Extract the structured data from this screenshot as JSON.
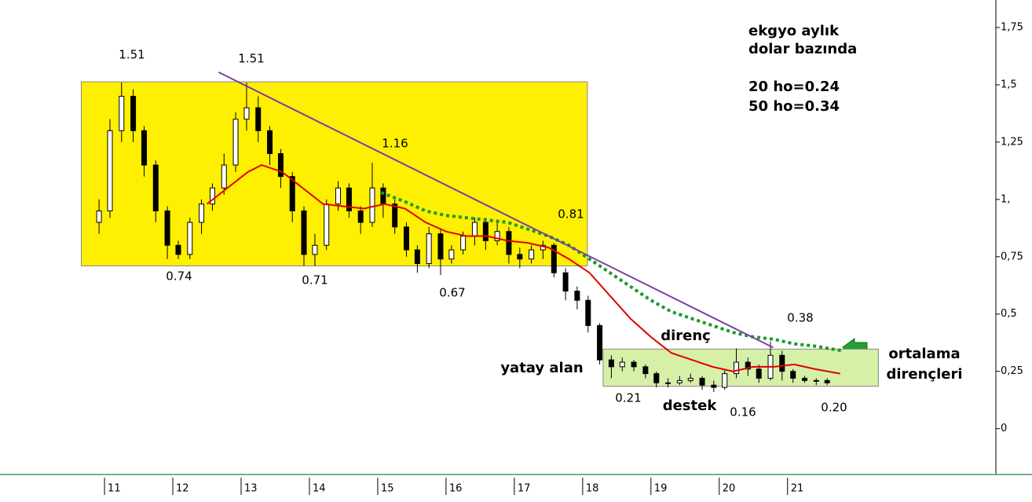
{
  "chart_data": {
    "type": "candlestick",
    "title": "ekgyo aylık",
    "subtitle": "dolar bazında",
    "notes": [
      "20 ho=0.24",
      "50 ho=0.34"
    ],
    "x": [
      10.92,
      11.08,
      11.25,
      11.42,
      11.58,
      11.75,
      11.92,
      12.08,
      12.25,
      12.42,
      12.58,
      12.75,
      12.92,
      13.08,
      13.25,
      13.42,
      13.58,
      13.75,
      13.92,
      14.08,
      14.25,
      14.42,
      14.58,
      14.75,
      14.92,
      15.08,
      15.25,
      15.42,
      15.58,
      15.75,
      15.92,
      16.08,
      16.25,
      16.42,
      16.58,
      16.75,
      16.92,
      17.08,
      17.25,
      17.42,
      17.58,
      17.75,
      17.92,
      18.08,
      18.25,
      18.42,
      18.58,
      18.75,
      18.92,
      19.08,
      19.25,
      19.42,
      19.58,
      19.75,
      19.92,
      20.08,
      20.25,
      20.42,
      20.58,
      20.75,
      20.92,
      21.08,
      21.25,
      21.42,
      21.58
    ],
    "open": [
      0.9,
      0.95,
      1.3,
      1.45,
      1.3,
      1.15,
      0.95,
      0.8,
      0.76,
      0.9,
      0.98,
      1.05,
      1.15,
      1.35,
      1.4,
      1.3,
      1.2,
      1.1,
      0.95,
      0.76,
      0.8,
      0.98,
      1.05,
      0.95,
      0.9,
      1.05,
      0.98,
      0.88,
      0.78,
      0.72,
      0.85,
      0.74,
      0.78,
      0.84,
      0.9,
      0.82,
      0.86,
      0.76,
      0.74,
      0.78,
      0.8,
      0.68,
      0.6,
      0.56,
      0.45,
      0.3,
      0.27,
      0.29,
      0.27,
      0.24,
      0.2,
      0.2,
      0.21,
      0.22,
      0.19,
      0.18,
      0.24,
      0.29,
      0.26,
      0.22,
      0.32,
      0.25,
      0.22,
      0.21,
      0.21
    ],
    "high": [
      1.0,
      1.35,
      1.51,
      1.48,
      1.32,
      1.17,
      0.97,
      0.82,
      0.92,
      1.0,
      1.07,
      1.2,
      1.38,
      1.51,
      1.45,
      1.32,
      1.22,
      1.12,
      0.97,
      0.85,
      1.0,
      1.08,
      1.07,
      0.97,
      1.16,
      1.07,
      1.0,
      0.9,
      0.8,
      0.88,
      0.87,
      0.8,
      0.86,
      0.92,
      0.92,
      0.9,
      0.88,
      0.79,
      0.8,
      0.82,
      0.81,
      0.7,
      0.62,
      0.58,
      0.46,
      0.32,
      0.31,
      0.3,
      0.28,
      0.25,
      0.22,
      0.23,
      0.24,
      0.23,
      0.21,
      0.26,
      0.35,
      0.31,
      0.28,
      0.38,
      0.34,
      0.26,
      0.23,
      0.22,
      0.22
    ],
    "low": [
      0.85,
      0.92,
      1.25,
      1.25,
      1.1,
      0.9,
      0.74,
      0.74,
      0.74,
      0.85,
      0.95,
      1.02,
      1.12,
      1.3,
      1.25,
      1.15,
      1.05,
      0.9,
      0.71,
      0.71,
      0.78,
      0.95,
      0.92,
      0.85,
      0.88,
      0.92,
      0.85,
      0.75,
      0.68,
      0.7,
      0.67,
      0.72,
      0.76,
      0.8,
      0.78,
      0.8,
      0.72,
      0.7,
      0.72,
      0.74,
      0.66,
      0.56,
      0.52,
      0.42,
      0.28,
      0.22,
      0.25,
      0.25,
      0.22,
      0.18,
      0.18,
      0.19,
      0.2,
      0.17,
      0.16,
      0.17,
      0.22,
      0.23,
      0.2,
      0.21,
      0.21,
      0.2,
      0.2,
      0.19,
      0.19
    ],
    "close": [
      0.95,
      1.3,
      1.45,
      1.3,
      1.15,
      0.95,
      0.8,
      0.76,
      0.9,
      0.98,
      1.05,
      1.15,
      1.35,
      1.4,
      1.3,
      1.2,
      1.1,
      0.95,
      0.76,
      0.8,
      0.98,
      1.05,
      0.95,
      0.9,
      1.05,
      0.98,
      0.88,
      0.78,
      0.72,
      0.85,
      0.74,
      0.78,
      0.84,
      0.9,
      0.82,
      0.86,
      0.76,
      0.74,
      0.78,
      0.8,
      0.68,
      0.6,
      0.56,
      0.45,
      0.3,
      0.27,
      0.29,
      0.27,
      0.24,
      0.2,
      0.2,
      0.21,
      0.22,
      0.19,
      0.18,
      0.24,
      0.29,
      0.26,
      0.22,
      0.32,
      0.25,
      0.22,
      0.21,
      0.21,
      0.2
    ],
    "lines": [
      {
        "color": "#e00000",
        "style": "solid",
        "x": [
          12.5,
          12.8,
          13.1,
          13.3,
          13.6,
          13.9,
          14.2,
          14.5,
          14.8,
          15.1,
          15.4,
          15.7,
          16.0,
          16.3,
          16.6,
          16.9,
          17.2,
          17.5,
          17.8,
          18.1,
          18.4,
          18.7,
          19.0,
          19.3,
          19.6,
          19.9,
          20.2,
          20.5,
          20.8,
          21.1,
          21.4,
          21.77
        ],
        "values": [
          0.98,
          1.05,
          1.12,
          1.15,
          1.12,
          1.05,
          0.98,
          0.97,
          0.96,
          0.98,
          0.96,
          0.9,
          0.86,
          0.84,
          0.84,
          0.82,
          0.81,
          0.79,
          0.74,
          0.68,
          0.58,
          0.48,
          0.4,
          0.33,
          0.3,
          0.27,
          0.25,
          0.27,
          0.27,
          0.28,
          0.26,
          0.24
        ]
      },
      {
        "color": "#1a9a2a",
        "style": "dotted",
        "x": [
          15.05,
          15.4,
          15.7,
          16.0,
          16.3,
          16.6,
          16.9,
          17.2,
          17.5,
          17.8,
          18.1,
          18.4,
          18.7,
          19.0,
          19.3,
          19.6,
          19.9,
          20.2,
          20.5,
          20.8,
          21.1,
          21.4,
          21.8
        ],
        "values": [
          1.03,
          0.99,
          0.95,
          0.93,
          0.92,
          0.91,
          0.9,
          0.87,
          0.84,
          0.8,
          0.74,
          0.68,
          0.62,
          0.56,
          0.51,
          0.48,
          0.45,
          0.42,
          0.4,
          0.39,
          0.37,
          0.36,
          0.34
        ]
      },
      {
        "color": "#7b3fa0",
        "style": "solid",
        "x": [
          12.67,
          20.79
        ],
        "values": [
          1.555,
          0.354
        ]
      }
    ],
    "zones": [
      {
        "color": "#ffef00",
        "x": [
          10.66,
          18.07
        ],
        "y": [
          0.71,
          1.513
        ]
      },
      {
        "color": "#d6f0a8",
        "x": [
          18.3,
          22.33
        ],
        "y": [
          0.185,
          0.347
        ]
      }
    ],
    "annotations": [
      "1.51",
      "1.51",
      "1.16",
      "0.81",
      "0.74",
      "0.71",
      "0.67",
      "0.38",
      "0.21",
      "0.16",
      "0.20",
      "direnç",
      "yatay alan",
      "destek",
      "ortalama",
      "dirençleri"
    ],
    "xlim": [
      9.47,
      24.05
    ],
    "xticks": [
      11,
      12,
      13,
      14,
      15,
      16,
      17,
      18,
      19,
      20,
      21
    ],
    "ylim": [
      -0.2,
      1.87
    ],
    "yticks": [
      0,
      {
        "value": 0.25,
        "label": "0,25"
      },
      {
        "value": 0.5,
        "label": "0,5"
      },
      {
        "value": 0.75,
        "label": "0,75"
      },
      {
        "value": 1,
        "label": "1,"
      },
      {
        "value": 1.25,
        "label": "1,25"
      },
      {
        "value": 1.5,
        "label": "1,5"
      },
      {
        "value": 1.75,
        "label": "1,75"
      }
    ]
  }
}
